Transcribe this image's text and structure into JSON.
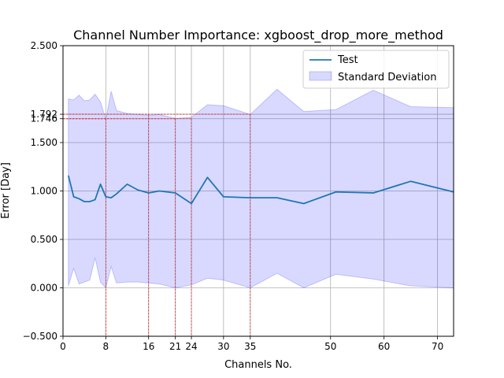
{
  "chart_data": {
    "type": "line",
    "title": "Channel Number Importance: xgboost_drop_more_method",
    "xlabel": "Channels No.",
    "ylabel": "Error [Day]",
    "xlim": [
      0,
      73
    ],
    "ylim": [
      -0.5,
      2.5
    ],
    "xticks": [
      0,
      8,
      16,
      21,
      24,
      30,
      35,
      50,
      60,
      70
    ],
    "yticks": [
      -0.5,
      0.0,
      0.5,
      1.0,
      1.5,
      1.746,
      1.792,
      2.5
    ],
    "ytick_labels": [
      "−0.500",
      "0.000",
      "0.500",
      "1.000",
      "1.500",
      "1.746",
      "1.792",
      "2.500"
    ],
    "grid": true,
    "legend": "top-right",
    "series": [
      {
        "name": "Test",
        "type": "line",
        "color": "#1f77b4",
        "x": [
          1,
          2,
          3,
          4,
          5,
          6,
          7,
          8,
          9,
          10,
          12,
          14,
          16,
          18,
          21,
          24,
          27,
          30,
          35,
          40,
          45,
          51,
          58,
          65,
          73
        ],
        "values": [
          1.16,
          0.94,
          0.92,
          0.89,
          0.89,
          0.91,
          1.07,
          0.94,
          0.93,
          0.97,
          1.07,
          1.01,
          0.98,
          1.0,
          0.98,
          0.87,
          1.14,
          0.94,
          0.93,
          0.93,
          0.87,
          0.99,
          0.98,
          1.1,
          0.99
        ]
      },
      {
        "name": "Standard Deviation",
        "type": "band",
        "color": "#0000ff",
        "x": [
          1,
          2,
          3,
          4,
          5,
          6,
          7,
          8,
          9,
          10,
          12,
          14,
          16,
          18,
          21,
          24,
          27,
          30,
          35,
          40,
          45,
          51,
          58,
          65,
          73
        ],
        "upper": [
          1.95,
          1.94,
          1.99,
          1.93,
          1.94,
          2.0,
          1.92,
          1.74,
          2.03,
          1.83,
          1.8,
          1.79,
          1.78,
          1.79,
          1.75,
          1.76,
          1.89,
          1.88,
          1.79,
          2.05,
          1.82,
          1.84,
          2.04,
          1.87,
          1.86
        ],
        "lower": [
          0.02,
          0.2,
          0.04,
          0.06,
          0.08,
          0.31,
          0.06,
          0.0,
          0.22,
          0.05,
          0.06,
          0.06,
          0.05,
          0.04,
          0.0,
          0.03,
          0.1,
          0.08,
          0.0,
          0.15,
          0.0,
          0.14,
          0.09,
          0.02,
          0.0
        ]
      }
    ],
    "markers": [
      {
        "x": 8,
        "y": 1.746
      },
      {
        "x": 16,
        "y": 1.792
      },
      {
        "x": 21,
        "y": 1.746
      },
      {
        "x": 24,
        "y": 1.746
      },
      {
        "x": 35,
        "y": 1.792
      }
    ]
  }
}
